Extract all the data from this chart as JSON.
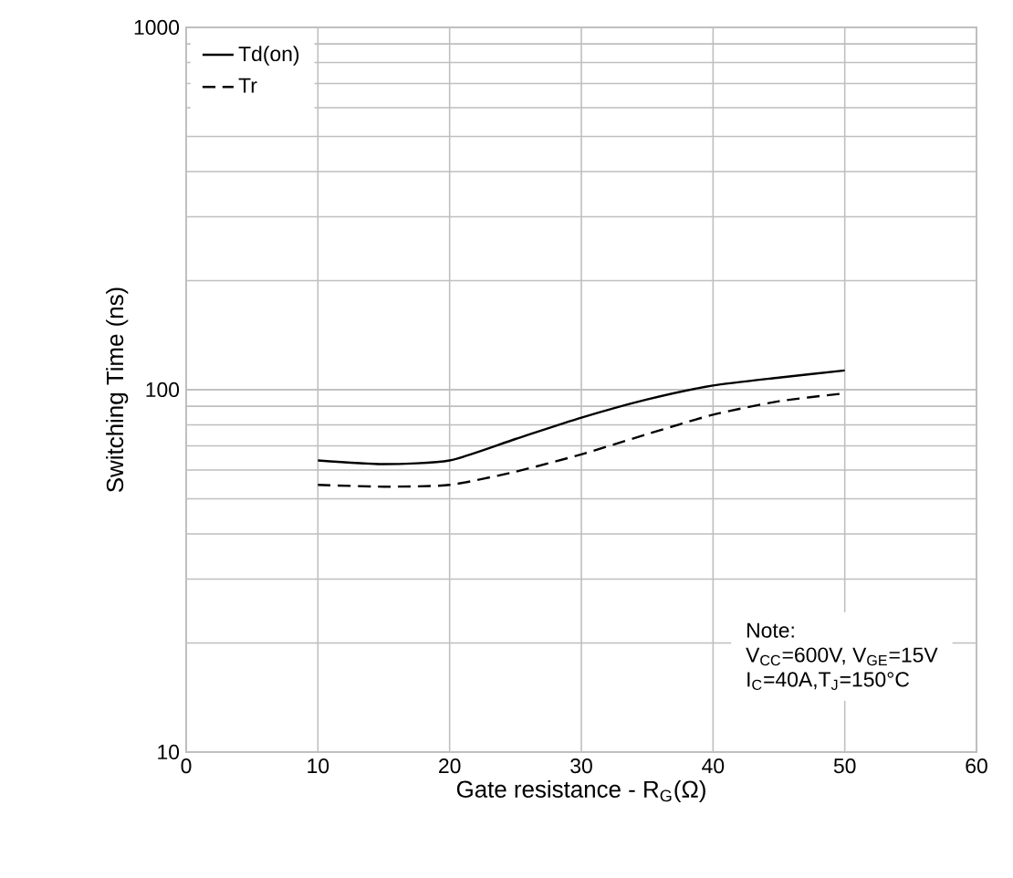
{
  "chart_data": {
    "type": "line",
    "xlabel": "Gate resistance - R$_{G}$(Ω)",
    "ylabel": "Switching Time (ns)",
    "x": [
      10,
      15,
      20,
      25,
      30,
      35,
      40,
      45,
      50
    ],
    "series": [
      {
        "name": "Td(on)",
        "color": "#000000",
        "line_style": "solid",
        "values": [
          63.8,
          62.3,
          63.8,
          73.1,
          83.7,
          94,
          102.7,
          108,
          113
        ]
      },
      {
        "name": "Tr",
        "color": "#000000",
        "line_style": "dashed",
        "values": [
          54.6,
          54,
          54.6,
          59.4,
          66.3,
          75.4,
          85.3,
          92.9,
          97.7
        ]
      }
    ],
    "xlim": [
      0,
      60
    ],
    "xticks": [
      0,
      10,
      20,
      30,
      40,
      50,
      60
    ],
    "ylim": [
      10,
      1000
    ],
    "yticks": [
      10,
      100,
      1000
    ],
    "log": "y",
    "grid": true,
    "legend": "top left",
    "marker": "none",
    "annotations": [
      "Note:",
      "V$_{CC}$=600V, V$_{GE}$=15V",
      "I$_{C}$=40A,T$_{J}$=150°C"
    ]
  }
}
